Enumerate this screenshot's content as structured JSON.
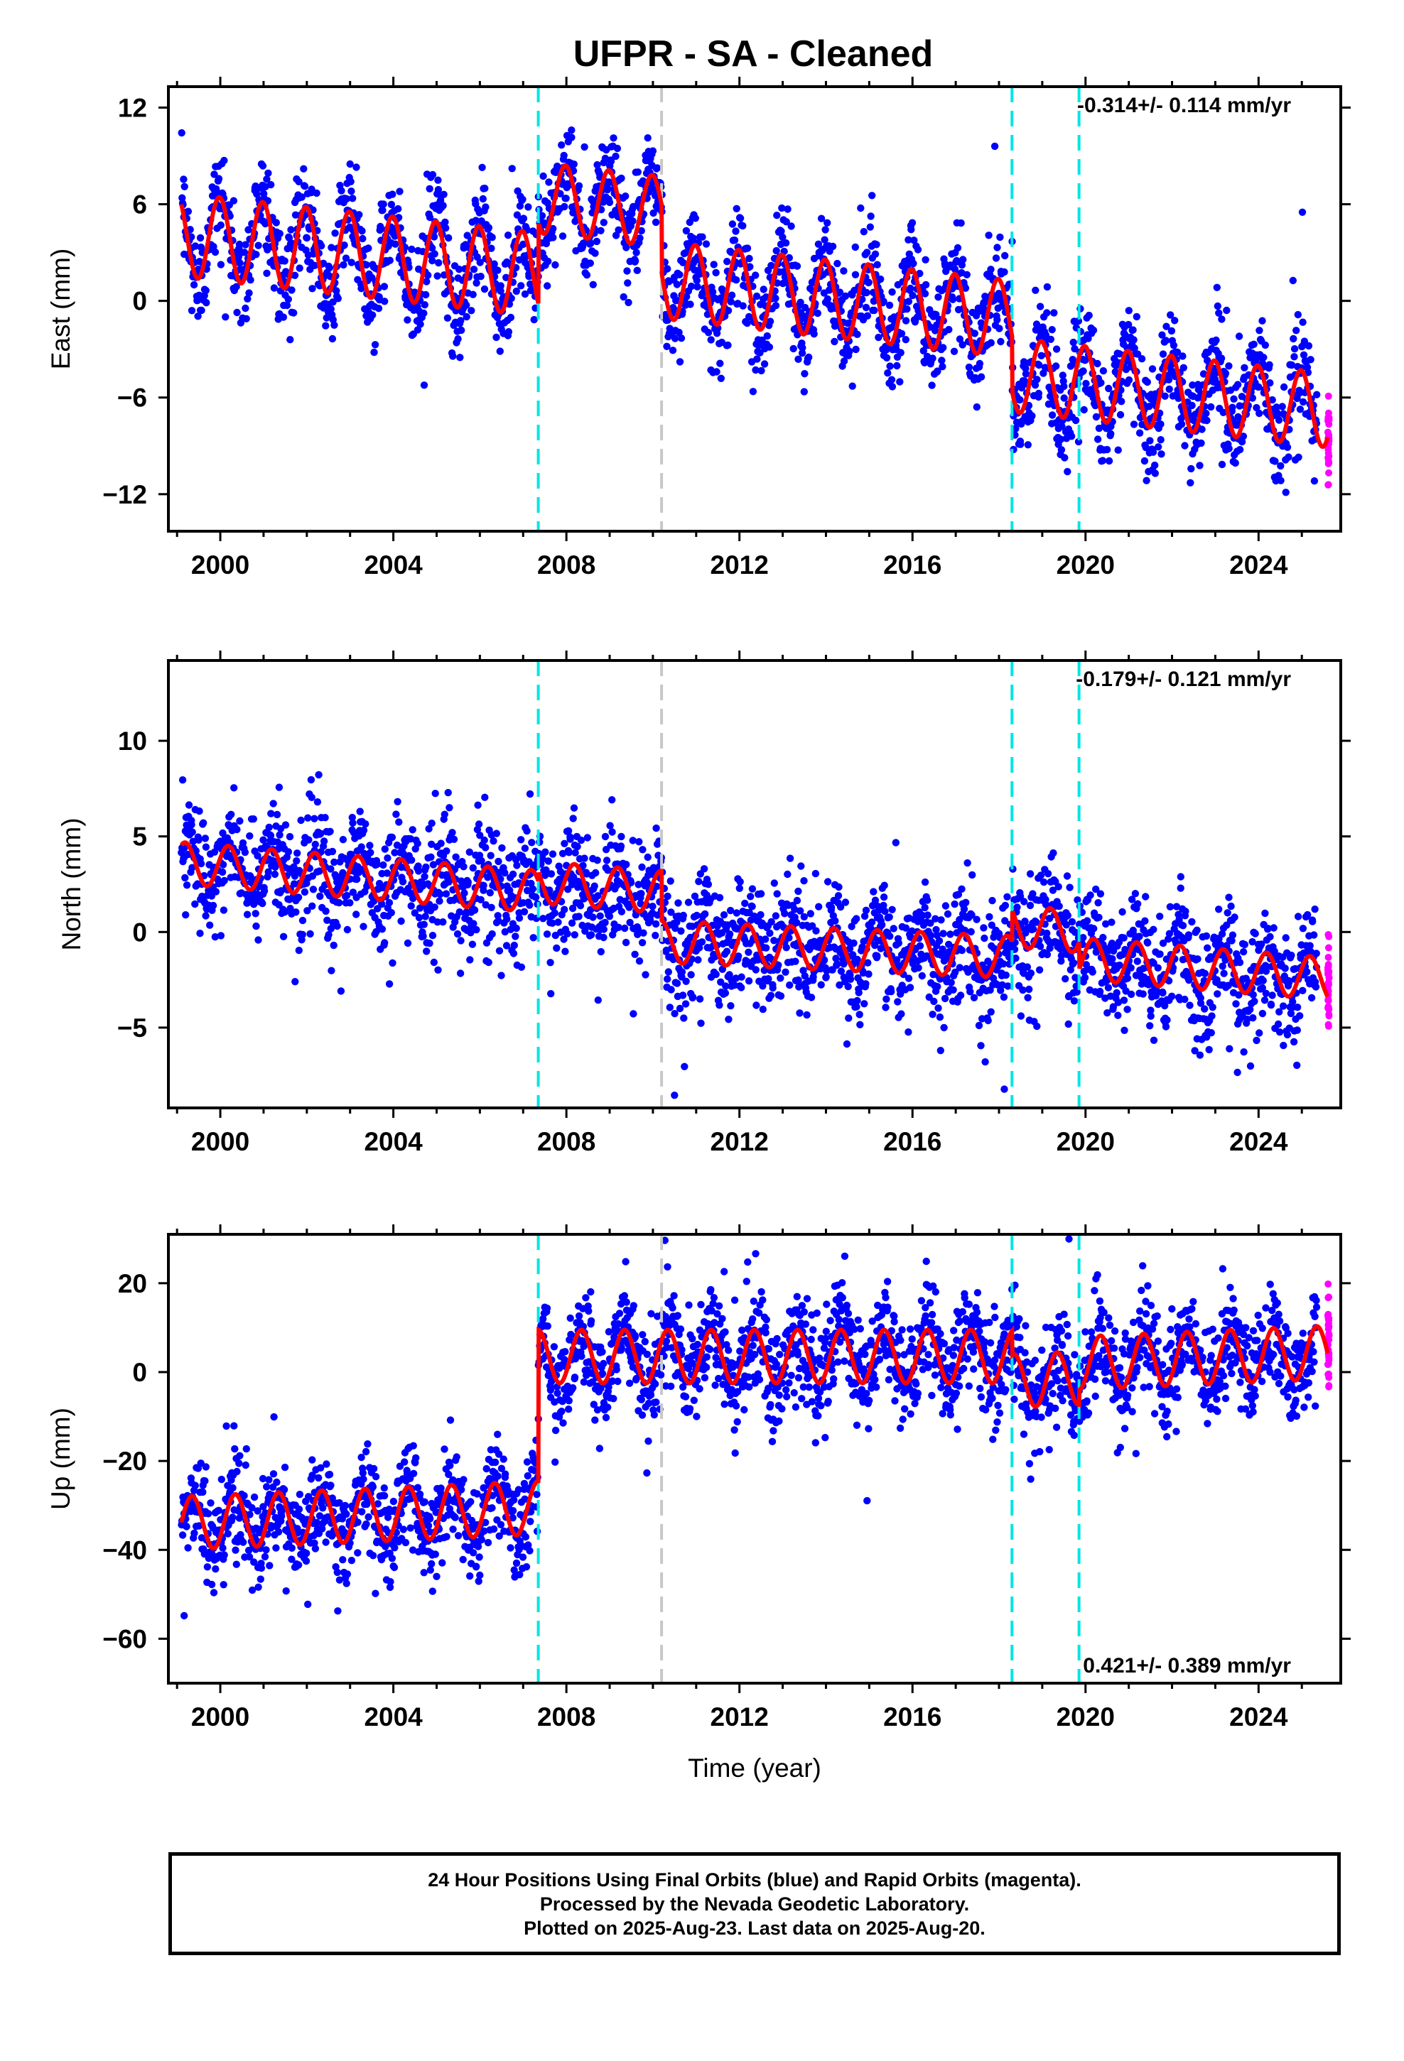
{
  "title": "UFPR  - SA - Cleaned",
  "colors": {
    "final_orbits": "#0000ff",
    "rapid_orbits": "#ff00ff",
    "model": "#ff0000",
    "steps_equipment": "#00e5e5",
    "steps_earthquake": "#c8c8c8"
  },
  "chart_data": [
    {
      "type": "scatter",
      "component": "East",
      "ylabel": "East (mm)",
      "xlabel": "",
      "xlim": [
        1998.8,
        2025.9
      ],
      "ylim": [
        -14.3,
        13.3
      ],
      "yticks": [
        12,
        6,
        0,
        -6,
        -12
      ],
      "ytick_labels": [
        "12",
        "6",
        "0",
        "−6",
        "−12"
      ],
      "xticks": [
        2000,
        2004,
        2008,
        2012,
        2016,
        2020,
        2024
      ],
      "xtick_labels": [
        "2000",
        "2004",
        "2008",
        "2012",
        "2016",
        "2020",
        "2024"
      ],
      "rate": "-0.314+/- 0.114 mm/yr",
      "rate_position": "top-right",
      "vlines_cyan": [
        2007.35,
        2018.3,
        2019.85
      ],
      "vlines_gray": [
        2010.2
      ],
      "model": {
        "segments": [
          {
            "t0": 1999.1,
            "t1": 2007.35,
            "offset": 4.1,
            "slope": -0.3,
            "amp": 2.6,
            "phase": 1.7
          },
          {
            "t0": 2007.35,
            "t1": 2010.2,
            "offset": 6.4,
            "slope": -0.3,
            "amp": 2.2,
            "phase": 1.7
          },
          {
            "t0": 2010.2,
            "t1": 2018.3,
            "offset": 1.3,
            "slope": -0.3,
            "amp": 2.4,
            "phase": 1.7
          },
          {
            "t0": 2018.3,
            "t1": 2025.6,
            "offset": -4.6,
            "slope": -0.3,
            "amp": 2.3,
            "phase": 1.7
          }
        ]
      },
      "scatter_spread": 1.6,
      "rapid_range": [
        2025.35,
        2025.62
      ]
    },
    {
      "type": "scatter",
      "component": "North",
      "ylabel": "North (mm)",
      "xlabel": "",
      "xlim": [
        1998.8,
        2025.9
      ],
      "ylim": [
        -9.2,
        14.2
      ],
      "yticks": [
        10,
        5,
        0,
        -5
      ],
      "ytick_labels": [
        "10",
        "5",
        "0",
        "−5"
      ],
      "xticks": [
        2000,
        2004,
        2008,
        2012,
        2016,
        2020,
        2024
      ],
      "xtick_labels": [
        "2000",
        "2004",
        "2008",
        "2012",
        "2016",
        "2020",
        "2024"
      ],
      "rate": "-0.179+/- 0.121 mm/yr",
      "rate_position": "top-right",
      "vlines_cyan": [
        2007.35,
        2018.3,
        2019.85
      ],
      "vlines_gray": [
        2010.2
      ],
      "model": {
        "segments": [
          {
            "t0": 1999.1,
            "t1": 2007.35,
            "offset": 3.6,
            "slope": -0.18,
            "amp": 1.1,
            "phase": 0.4
          },
          {
            "t0": 2007.35,
            "t1": 2010.2,
            "offset": 2.6,
            "slope": -0.18,
            "amp": 1.1,
            "phase": 0.4
          },
          {
            "t0": 2010.2,
            "t1": 2018.3,
            "offset": -0.5,
            "slope": -0.1,
            "amp": 1.1,
            "phase": 0.4
          },
          {
            "t0": 2018.3,
            "t1": 2019.85,
            "offset": 0.3,
            "slope": -0.18,
            "amp": 1.1,
            "phase": 0.4
          },
          {
            "t0": 2019.85,
            "t1": 2025.6,
            "offset": -1.4,
            "slope": -0.18,
            "amp": 1.1,
            "phase": 0.4
          }
        ]
      },
      "scatter_spread": 1.5,
      "rapid_range": [
        2025.35,
        2025.62
      ]
    },
    {
      "type": "scatter",
      "component": "Up",
      "ylabel": "Up (mm)",
      "xlabel": "Time (year)",
      "xlim": [
        1998.8,
        2025.9
      ],
      "ylim": [
        -70,
        31
      ],
      "yticks": [
        20,
        0,
        -20,
        -40,
        -60
      ],
      "ytick_labels": [
        "20",
        "0",
        "−20",
        "−40",
        "−60"
      ],
      "xticks": [
        2000,
        2004,
        2008,
        2012,
        2016,
        2020,
        2024
      ],
      "xtick_labels": [
        "2000",
        "2004",
        "2008",
        "2012",
        "2016",
        "2020",
        "2024"
      ],
      "rate": "0.421+/- 0.389 mm/yr",
      "rate_position": "bottom-right",
      "vlines_cyan": [
        2007.35,
        2018.3,
        2019.85
      ],
      "vlines_gray": [
        2010.2
      ],
      "model": {
        "segments": [
          {
            "t0": 1999.1,
            "t1": 2007.35,
            "offset": -34,
            "slope": 0.42,
            "amp": 6.0,
            "phase": -0.6
          },
          {
            "t0": 2007.35,
            "t1": 2018.3,
            "offset": 3.5,
            "slope": 0.0,
            "amp": 6.0,
            "phase": -0.6
          },
          {
            "t0": 2018.3,
            "t1": 2019.85,
            "offset": -2.0,
            "slope": 0.42,
            "amp": 6.0,
            "phase": -0.6
          },
          {
            "t0": 2019.85,
            "t1": 2025.6,
            "offset": 2.0,
            "slope": 0.42,
            "amp": 6.0,
            "phase": -0.6
          }
        ]
      },
      "scatter_spread": 5.5,
      "rapid_range": [
        2025.35,
        2025.62
      ]
    }
  ],
  "footer": {
    "line1": "24 Hour Positions Using Final Orbits (blue) and Rapid Orbits (magenta).",
    "line2": "Processed by the Nevada Geodetic Laboratory.",
    "line3": "Plotted on 2025-Aug-23. Last data on 2025-Aug-20."
  }
}
